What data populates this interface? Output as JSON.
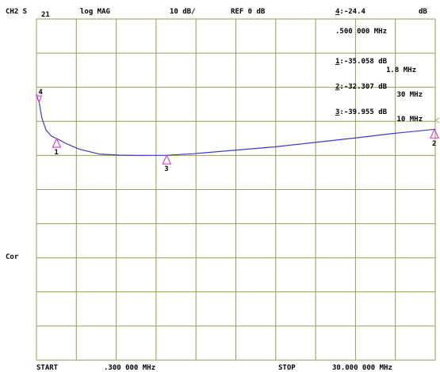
{
  "header": {
    "channel": "CH2 S",
    "param_sub": "21",
    "format": "log MAG",
    "scale": "10 dB/",
    "ref": "REF 0 dB",
    "unit": "dB"
  },
  "side": {
    "cor_label": "Cor"
  },
  "footer": {
    "start_label": "START",
    "start_value": ".300 000 MHz",
    "stop_label": "STOP",
    "stop_value": "30.000 000 MHz"
  },
  "markers": [
    {
      "id": "1",
      "value": "-35.058 dB",
      "freq": "1.8 MHz",
      "f_mhz": 1.8,
      "db": -35.058
    },
    {
      "id": "2",
      "value": "-32.307 dB",
      "freq": "30 MHz",
      "f_mhz": 30,
      "db": -32.307
    },
    {
      "id": "3",
      "value": "-39.955 dB",
      "freq": "10 MHz",
      "f_mhz": 10,
      "db": -39.955
    },
    {
      "id": "4",
      "value": "-24.4",
      "freq": ".500 000 MHz",
      "f_mhz": 0.5,
      "db": -24.4
    }
  ],
  "colors": {
    "grid": "#9b9b55",
    "trace": "#3c3ccc",
    "marker": "#d03cd0",
    "text": "#000000"
  },
  "chart_data": {
    "type": "line",
    "x_unit": "MHz",
    "y_unit": "dB",
    "xlim": [
      0.3,
      30
    ],
    "ylim": [
      -100,
      0
    ],
    "grid": true,
    "series": [
      {
        "x": [
          0.3,
          0.4,
          0.5,
          0.7,
          1.0,
          1.4,
          1.8,
          2.5,
          3.5,
          5.0,
          6.5,
          8.0,
          10.0,
          12.0,
          15.0,
          18.0,
          21.0,
          24.0,
          27.0,
          30.0
        ],
        "y": [
          -22.0,
          -23.5,
          -24.4,
          -29.0,
          -32.5,
          -34.3,
          -35.06,
          -36.5,
          -38.2,
          -39.6,
          -39.9,
          -40.0,
          -39.95,
          -39.5,
          -38.5,
          -37.5,
          -36.2,
          -34.9,
          -33.5,
          -32.31
        ]
      }
    ]
  }
}
